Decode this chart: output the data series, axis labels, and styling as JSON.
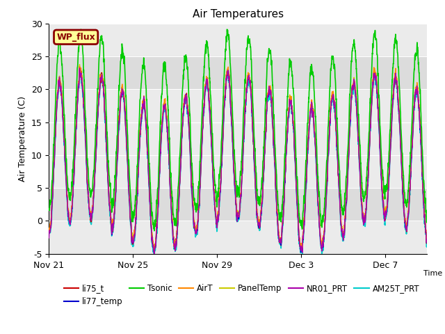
{
  "title": "Air Temperatures",
  "ylabel": "Air Temperature (C)",
  "xlabel": "Time",
  "ylim": [
    -5,
    30
  ],
  "xtick_labels": [
    "Nov 21",
    "Nov 25",
    "Nov 29",
    "Dec 3",
    "Dec 7"
  ],
  "xtick_positions": [
    0,
    4,
    8,
    12,
    16
  ],
  "wp_flux_label": "WP_flux",
  "wp_flux_bg": "#FFFF99",
  "wp_flux_border": "#8B0000",
  "wp_flux_text_color": "#8B0000",
  "shaded_bands": [
    {
      "ymin": 0,
      "ymax": 5,
      "color": "#DCDCDC"
    },
    {
      "ymin": 20,
      "ymax": 25,
      "color": "#DCDCDC"
    }
  ],
  "background_color": "#EBEBEB",
  "series": [
    {
      "name": "li75_t",
      "color": "#CC0000",
      "lw": 1.0,
      "zorder": 5
    },
    {
      "name": "li77_temp",
      "color": "#0000CC",
      "lw": 1.0,
      "zorder": 5
    },
    {
      "name": "Tsonic",
      "color": "#00CC00",
      "lw": 1.2,
      "zorder": 6
    },
    {
      "name": "AirT",
      "color": "#FF8800",
      "lw": 1.0,
      "zorder": 5
    },
    {
      "name": "PanelTemp",
      "color": "#CCCC00",
      "lw": 1.0,
      "zorder": 4
    },
    {
      "name": "NR01_PRT",
      "color": "#AA00AA",
      "lw": 1.0,
      "zorder": 5
    },
    {
      "name": "AM25T_PRT",
      "color": "#00CCCC",
      "lw": 1.2,
      "zorder": 4
    }
  ],
  "n_days": 18,
  "pts_per_day": 144,
  "seed": 42
}
